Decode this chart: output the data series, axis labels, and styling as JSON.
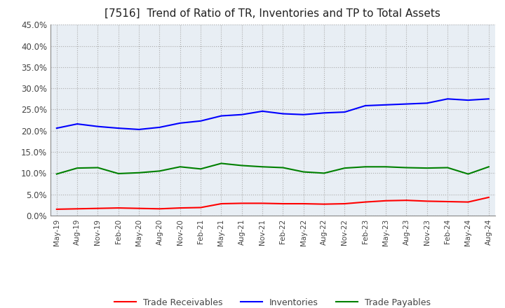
{
  "title": "[7516]  Trend of Ratio of TR, Inventories and TP to Total Assets",
  "xlabels": [
    "May-19",
    "Aug-19",
    "Nov-19",
    "Feb-20",
    "May-20",
    "Aug-20",
    "Nov-20",
    "Feb-21",
    "May-21",
    "Aug-21",
    "Nov-21",
    "Feb-22",
    "May-22",
    "Aug-22",
    "Nov-22",
    "Feb-23",
    "May-23",
    "Aug-23",
    "Nov-23",
    "Feb-24",
    "May-24",
    "Aug-24"
  ],
  "trade_receivables": [
    1.5,
    1.6,
    1.7,
    1.8,
    1.7,
    1.6,
    1.8,
    1.9,
    2.8,
    2.9,
    2.9,
    2.8,
    2.8,
    2.7,
    2.8,
    3.2,
    3.5,
    3.6,
    3.4,
    3.3,
    3.2,
    4.3
  ],
  "inventories": [
    20.6,
    21.6,
    21.0,
    20.6,
    20.3,
    20.8,
    21.8,
    22.3,
    23.5,
    23.8,
    24.6,
    24.0,
    23.8,
    24.2,
    24.4,
    25.9,
    26.1,
    26.3,
    26.5,
    27.5,
    27.2,
    27.5
  ],
  "trade_payables": [
    9.8,
    11.2,
    11.3,
    9.9,
    10.1,
    10.5,
    11.5,
    11.0,
    12.3,
    11.8,
    11.5,
    11.3,
    10.3,
    10.0,
    11.2,
    11.5,
    11.5,
    11.3,
    11.2,
    11.3,
    9.8,
    11.5
  ],
  "ylim": [
    0,
    45
  ],
  "yticks": [
    0.0,
    5.0,
    10.0,
    15.0,
    20.0,
    25.0,
    30.0,
    35.0,
    40.0,
    45.0
  ],
  "line_colors": {
    "trade_receivables": "#ff0000",
    "inventories": "#0000ff",
    "trade_payables": "#008000"
  },
  "legend_labels": [
    "Trade Receivables",
    "Inventories",
    "Trade Payables"
  ],
  "background_color": "#ffffff",
  "plot_bg_color": "#e8eef4",
  "grid_color": "#aaaaaa"
}
